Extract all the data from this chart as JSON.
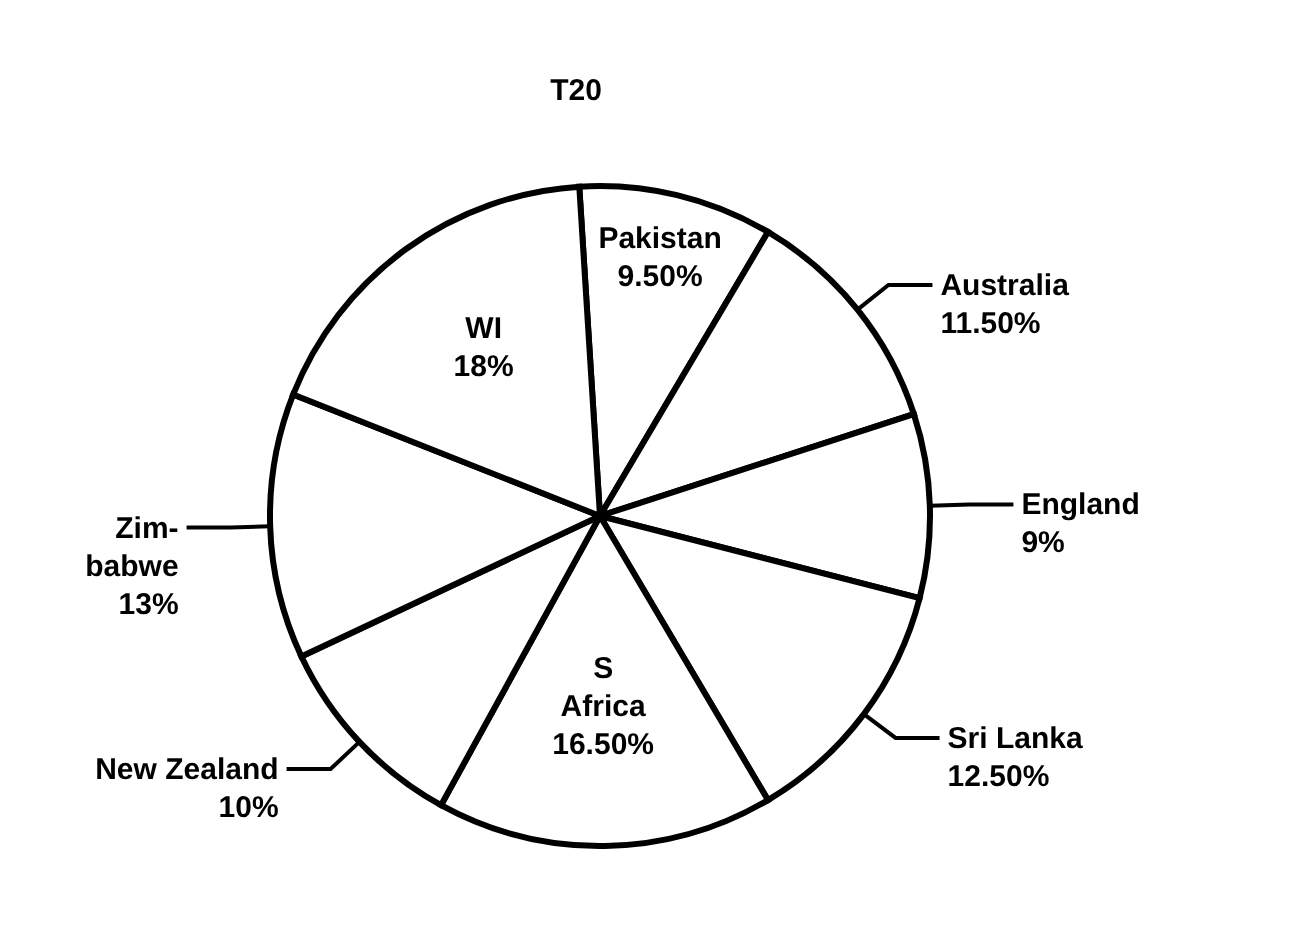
{
  "chart_data": {
    "type": "pie",
    "title": "T20",
    "categories": [
      "Pakistan",
      "Australia",
      "England",
      "Sri Lanka",
      "S Africa",
      "New Zealand",
      "Zim-babwe",
      "WI"
    ],
    "values": [
      9.5,
      11.5,
      9,
      12.5,
      16.5,
      10,
      13,
      18
    ],
    "value_labels": [
      "9.50%",
      "11.50%",
      "9%",
      "12.50%",
      "16.50%",
      "10%",
      "13%",
      "18%"
    ],
    "colors": [
      "#ffffff",
      "#ffffff",
      "#ffffff",
      "#ffffff",
      "#ffffff",
      "#ffffff",
      "#ffffff",
      "#ffffff"
    ]
  }
}
